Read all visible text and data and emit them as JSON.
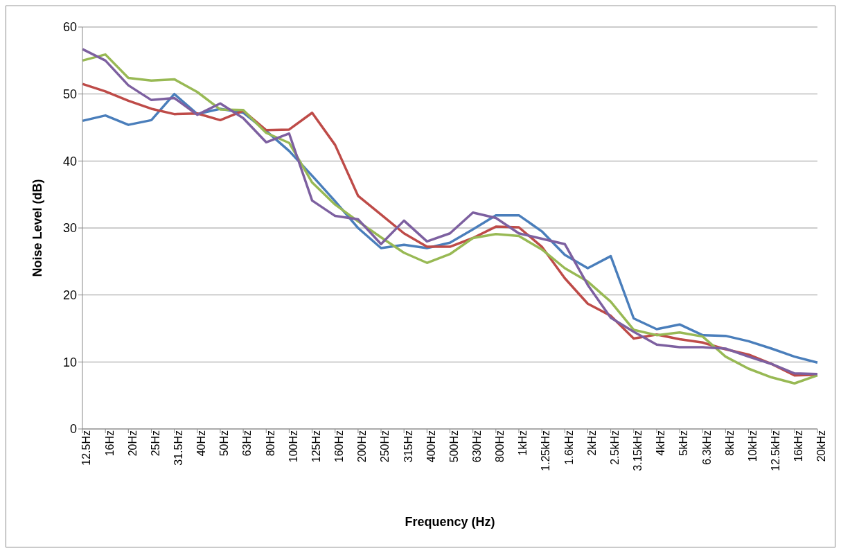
{
  "chart_data": {
    "type": "line",
    "xlabel": "Frequency (Hz)",
    "ylabel": "Noise Level (dB)",
    "categories": [
      "12.5Hz",
      "16Hz",
      "20Hz",
      "25Hz",
      "31.5Hz",
      "40Hz",
      "50Hz",
      "63Hz",
      "80Hz",
      "100Hz",
      "125Hz",
      "160Hz",
      "200Hz",
      "250Hz",
      "315Hz",
      "400Hz",
      "500Hz",
      "630Hz",
      "800Hz",
      "1kHz",
      "1.25kHz",
      "1.6kHz",
      "2kHz",
      "2.5kHz",
      "3.15kHz",
      "4kHz",
      "5kHz",
      "6.3kHz",
      "8kHz",
      "10kHz",
      "12.5kHz",
      "16kHz",
      "20kHz"
    ],
    "series": [
      {
        "color": "#4a7ebb",
        "values": [
          46,
          46.8,
          45.4,
          46.1,
          50,
          47,
          47.8,
          47.2,
          44.5,
          41.5,
          37.8,
          34,
          30,
          27,
          27.5,
          27,
          27.8,
          29.8,
          31.9,
          31.9,
          29.5,
          26,
          24,
          25.8,
          16.5,
          14.9,
          15.6,
          14,
          13.9,
          13.1,
          12,
          10.8,
          9.9
        ]
      },
      {
        "color": "#be4b48",
        "values": [
          51.5,
          50.4,
          49,
          47.8,
          47,
          47.1,
          46.1,
          47.5,
          44.6,
          44.7,
          47.2,
          42.4,
          34.8,
          32,
          29.2,
          27.2,
          27.2,
          28.5,
          30.2,
          30.1,
          27.2,
          22.5,
          18.7,
          16.9,
          13.5,
          14.1,
          13.4,
          12.9,
          11.9,
          11.1,
          9.7,
          8,
          8.1
        ]
      },
      {
        "color": "#98b954",
        "values": [
          55,
          55.9,
          52.4,
          52,
          52.2,
          50.3,
          47.7,
          47.6,
          44.2,
          42.7,
          36.8,
          33.5,
          31,
          28.6,
          26.3,
          24.8,
          26.1,
          28.5,
          29.1,
          28.8,
          26.8,
          24,
          22,
          19,
          14.8,
          14,
          14.4,
          13.8,
          10.8,
          9,
          7.7,
          6.8,
          8
        ]
      },
      {
        "color": "#7d60a0",
        "values": [
          56.7,
          55,
          51.3,
          49.1,
          49.4,
          46.9,
          48.6,
          46.4,
          42.8,
          44.1,
          34.1,
          31.8,
          31.3,
          27.6,
          31.1,
          28,
          29.2,
          32.3,
          31.5,
          29.2,
          28.4,
          27.6,
          21.5,
          16.6,
          14.5,
          12.6,
          12.2,
          12.2,
          12,
          10.8,
          9.7,
          8.3,
          8.2
        ]
      }
    ],
    "ylim": [
      0,
      60
    ],
    "yticks": [
      0,
      10,
      20,
      30,
      40,
      50,
      60
    ],
    "grid": "y",
    "marker": "none",
    "line_style": "solid",
    "legend": false
  }
}
